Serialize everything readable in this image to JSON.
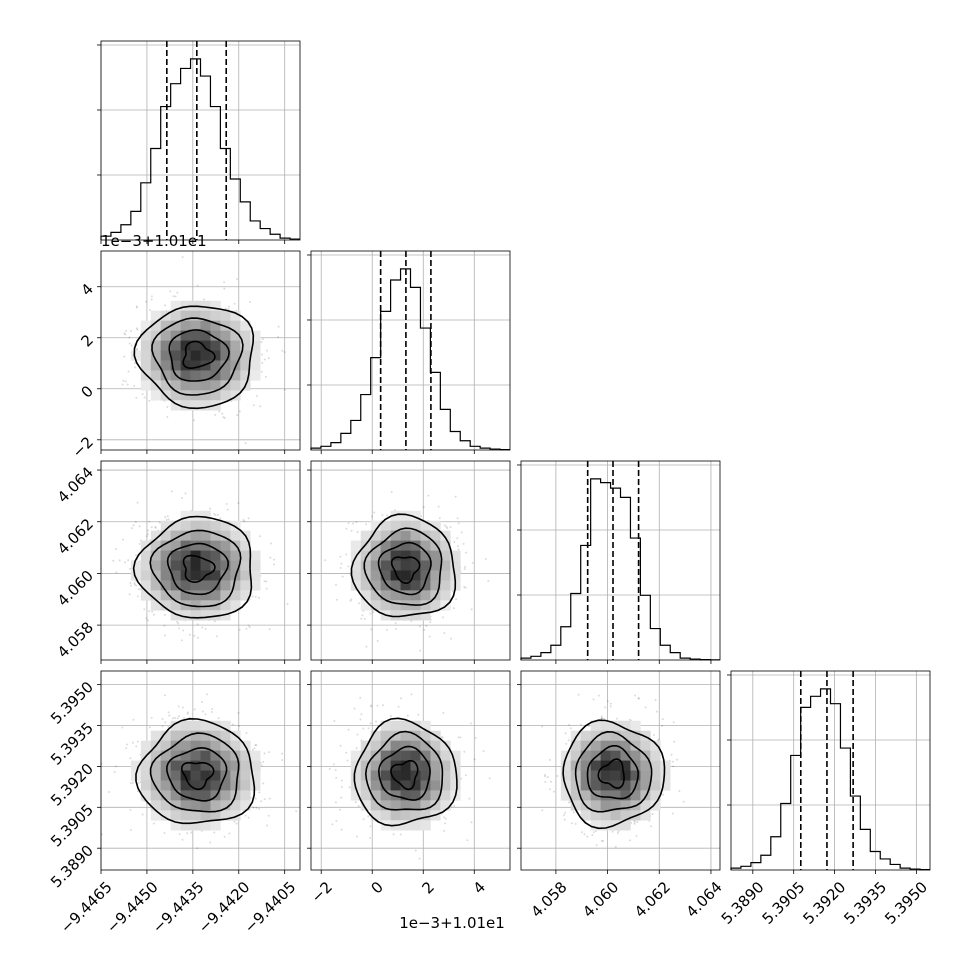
{
  "chart_data": {
    "type": "corner",
    "grid": true,
    "parameters": [
      {
        "index": 0,
        "ticks": [
          -9.4465,
          -9.445,
          -9.4435,
          -9.442,
          -9.4405
        ],
        "tick_labels": [
          "−9.4465",
          "−9.4450",
          "−9.4435",
          "−9.4420",
          "−9.4405"
        ],
        "range": [
          -9.4465,
          -9.44
        ],
        "mean": -9.44335,
        "std": 0.00095,
        "quantiles": [
          -9.44435,
          -9.44337,
          -9.44241
        ],
        "offset_text": ""
      },
      {
        "index": 1,
        "ticks": [
          -2,
          0,
          2,
          4
        ],
        "tick_labels": [
          "−2",
          "0",
          "2",
          "4"
        ],
        "range": [
          -2.4,
          5.4
        ],
        "mean": 1.3,
        "std": 1.0,
        "quantiles": [
          0.33,
          1.32,
          2.3
        ],
        "offset_text": "1e−3+1.01e1"
      },
      {
        "index": 2,
        "ticks": [
          4.058,
          4.06,
          4.062,
          4.064
        ],
        "tick_labels": [
          "4.058",
          "4.060",
          "4.062",
          "4.064"
        ],
        "range": [
          4.05665,
          4.06435
        ],
        "mean": 4.0602,
        "std": 0.00098,
        "quantiles": [
          4.05923,
          4.06021,
          4.0612
        ],
        "offset_text": ""
      },
      {
        "index": 3,
        "ticks": [
          5.389,
          5.3905,
          5.392,
          5.3935,
          5.395
        ],
        "tick_labels": [
          "5.3890",
          "5.3905",
          "5.3920",
          "5.3935",
          "5.3950"
        ],
        "range": [
          5.3882,
          5.3955
        ],
        "mean": 5.39172,
        "std": 0.00095,
        "quantiles": [
          5.39076,
          5.39172,
          5.39268
        ],
        "offset_text": ""
      }
    ],
    "histograms": [
      {
        "param": 0,
        "counts": [
          2,
          4,
          8,
          15,
          30,
          48,
          70,
          82,
          90,
          95,
          86,
          70,
          48,
          32,
          20,
          10,
          6,
          3,
          1,
          0.5
        ]
      },
      {
        "param": 1,
        "counts": [
          1,
          2,
          4,
          9,
          16,
          30,
          50,
          75,
          92,
          98,
          88,
          66,
          42,
          22,
          10,
          5,
          2,
          1,
          0.5,
          0.2
        ]
      },
      {
        "param": 2,
        "counts": [
          1,
          2,
          4,
          8,
          18,
          36,
          62,
          98,
          96,
          93,
          88,
          66,
          35,
          17,
          8,
          4,
          1,
          0.5,
          0.2,
          0.1
        ]
      },
      {
        "param": 3,
        "counts": [
          1,
          2,
          4,
          8,
          18,
          36,
          62,
          88,
          94,
          98,
          90,
          66,
          40,
          22,
          10,
          6,
          3,
          1,
          0.5,
          0.2
        ]
      }
    ],
    "density_panels": [
      {
        "x": 0,
        "y": 1
      },
      {
        "x": 0,
        "y": 2
      },
      {
        "x": 1,
        "y": 2
      },
      {
        "x": 0,
        "y": 3
      },
      {
        "x": 1,
        "y": 3
      },
      {
        "x": 2,
        "y": 3
      }
    ],
    "contour_levels_sigma": [
      0.5,
      1.0,
      1.5,
      2.0
    ]
  }
}
